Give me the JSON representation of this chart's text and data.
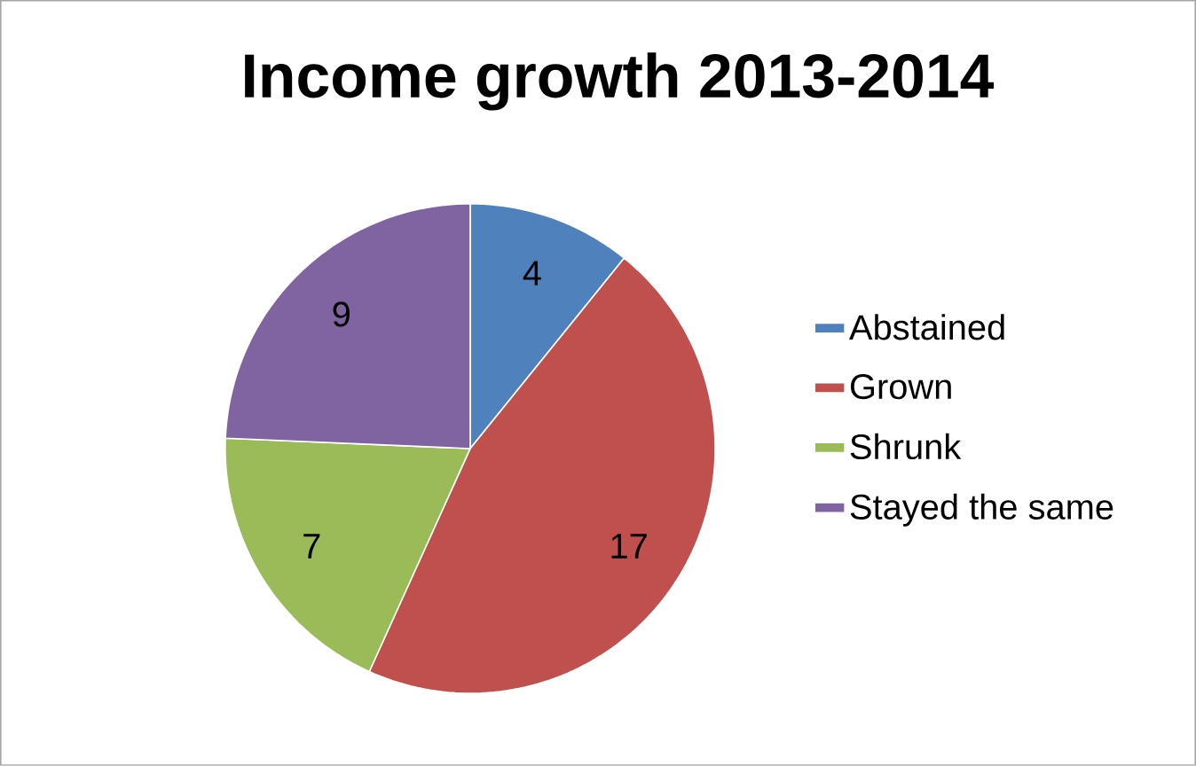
{
  "chart_data": {
    "type": "pie",
    "title": "Income growth 2013-2014",
    "categories": [
      "Abstained",
      "Grown",
      "Shrunk",
      "Stayed the same"
    ],
    "values": [
      4,
      17,
      7,
      9
    ],
    "colors": [
      "#4f81bd",
      "#c0504d",
      "#9bbb59",
      "#8064a2"
    ],
    "data_labels": true,
    "legend": "right"
  }
}
